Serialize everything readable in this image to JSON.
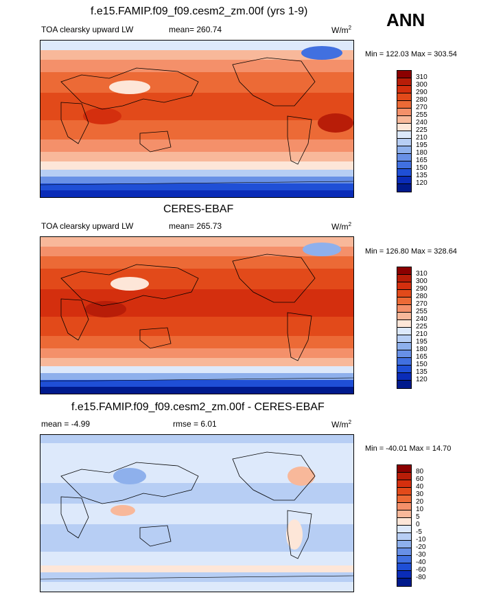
{
  "header": {
    "season": "ANN"
  },
  "panels": [
    {
      "title": "f.e15.FAMIP.f09_f09.cesm2_zm.00f (yrs 1-9)",
      "variable": "TOA clearsky upward LW",
      "stat": "mean= 260.74",
      "units": "W/m",
      "units_exp": "2",
      "minmax": "Min = 122.03 Max = 303.54",
      "colorbar_labels": [
        "310",
        "300",
        "290",
        "280",
        "270",
        "255",
        "240",
        "225",
        "210",
        "195",
        "180",
        "165",
        "150",
        "135",
        "120"
      ]
    },
    {
      "title": "CERES-EBAF",
      "variable": "TOA clearsky upward LW",
      "stat": "mean= 265.73",
      "units": "W/m",
      "units_exp": "2",
      "minmax": "Min = 126.80 Max = 328.64",
      "colorbar_labels": [
        "310",
        "300",
        "290",
        "280",
        "270",
        "255",
        "240",
        "225",
        "210",
        "195",
        "180",
        "165",
        "150",
        "135",
        "120"
      ]
    },
    {
      "title": "f.e15.FAMIP.f09_f09.cesm2_zm.00f - CERES-EBAF",
      "variable": "mean =  -4.99",
      "stat": "rmse =   6.01",
      "units": "W/m",
      "units_exp": "2",
      "minmax": "Min = -40.01 Max =  14.70",
      "colorbar_labels": [
        "80",
        "60",
        "40",
        "30",
        "20",
        "10",
        "5",
        "0",
        "-5",
        "-10",
        "-20",
        "-30",
        "-40",
        "-60",
        "-80"
      ]
    }
  ],
  "colors": {
    "abs_scale": [
      "#8b0000",
      "#b81d08",
      "#d42f0e",
      "#e24a1a",
      "#ec6a36",
      "#f4906a",
      "#f8b89a",
      "#fde6d8",
      "#dde9fb",
      "#b7cef4",
      "#8eb0ec",
      "#6890e6",
      "#4170e0",
      "#1f4fd6",
      "#0a2cb8",
      "#001a8c"
    ],
    "diff_scale": [
      "#8b0000",
      "#b81d08",
      "#d42f0e",
      "#e24a1a",
      "#ec6a36",
      "#f4906a",
      "#f8b89a",
      "#fde6d8",
      "#dde9fb",
      "#b7cef4",
      "#8eb0ec",
      "#6890e6",
      "#4170e0",
      "#1f4fd6",
      "#0a2cb8",
      "#001a8c"
    ]
  }
}
